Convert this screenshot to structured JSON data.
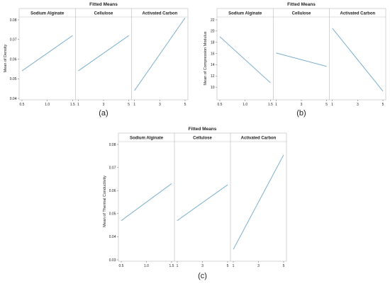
{
  "figure": {
    "panel_letters": [
      "(a)",
      "(b)",
      "(c)"
    ]
  },
  "colors": {
    "line": "#6ea6c8",
    "frame": "#b9b9b9",
    "strip_bg": "#ffffff",
    "text": "#222222"
  },
  "chart_data": [
    {
      "type": "line",
      "panel": "(a)",
      "title": "Fitted Means",
      "ylabel": "Mean of Density",
      "ylim": [
        0.04,
        0.08
      ],
      "yticks": [
        "0.04",
        "0.05",
        "0.06",
        "0.07",
        "0.08"
      ],
      "facets": [
        {
          "name": "Sodium Alginate",
          "xlim": [
            0.5,
            1.5
          ],
          "xticks": [
            "0.5",
            "1.0",
            "1.5"
          ],
          "x": [
            0.5,
            1.5
          ],
          "y": [
            0.054,
            0.072
          ]
        },
        {
          "name": "Cellulose",
          "xlim": [
            1,
            5
          ],
          "xticks": [
            "1",
            "3",
            "5"
          ],
          "x": [
            1,
            5
          ],
          "y": [
            0.054,
            0.072
          ]
        },
        {
          "name": "Activated Carbon",
          "xlim": [
            1,
            5
          ],
          "xticks": [
            "1",
            "3",
            "5"
          ],
          "x": [
            1,
            5
          ],
          "y": [
            0.044,
            0.081
          ]
        }
      ]
    },
    {
      "type": "line",
      "panel": "(b)",
      "title": "Fitted Means",
      "ylabel": "Mean of Compression Modulus",
      "ylim": [
        8,
        22
      ],
      "yticks": [
        "10",
        "12",
        "14",
        "16",
        "18",
        "20",
        "22"
      ],
      "facets": [
        {
          "name": "Sodium Alginate",
          "xlim": [
            0.5,
            1.5
          ],
          "xticks": [
            "0.5",
            "1.0",
            "1.5"
          ],
          "x": [
            0.5,
            1.5
          ],
          "y": [
            19.0,
            10.8
          ]
        },
        {
          "name": "Cellulose",
          "xlim": [
            1,
            5
          ],
          "xticks": [
            "1",
            "3",
            "5"
          ],
          "x": [
            1,
            5
          ],
          "y": [
            16.1,
            13.7
          ]
        },
        {
          "name": "Activated Carbon",
          "xlim": [
            1,
            5
          ],
          "xticks": [
            "1",
            "3",
            "5"
          ],
          "x": [
            1,
            5
          ],
          "y": [
            20.5,
            9.3
          ]
        }
      ]
    },
    {
      "type": "line",
      "panel": "(c)",
      "title": "Fitted Means",
      "ylabel": "Mean of Thermal Conductivity",
      "ylim": [
        0.03,
        0.08
      ],
      "yticks": [
        "0.03",
        "0.04",
        "0.05",
        "0.06",
        "0.07",
        "0.08"
      ],
      "facets": [
        {
          "name": "Sodium Alginate",
          "xlim": [
            0.5,
            1.5
          ],
          "xticks": [
            "0.5",
            "1.0",
            "1.5"
          ],
          "x": [
            0.5,
            1.5
          ],
          "y": [
            0.047,
            0.063
          ]
        },
        {
          "name": "Cellulose",
          "xlim": [
            1,
            5
          ],
          "xticks": [
            "1",
            "3",
            "5"
          ],
          "x": [
            1,
            5
          ],
          "y": [
            0.047,
            0.0625
          ]
        },
        {
          "name": "Activated Carbon",
          "xlim": [
            1,
            5
          ],
          "xticks": [
            "1",
            "3",
            "5"
          ],
          "x": [
            1,
            5
          ],
          "y": [
            0.0345,
            0.0755
          ]
        }
      ]
    }
  ]
}
